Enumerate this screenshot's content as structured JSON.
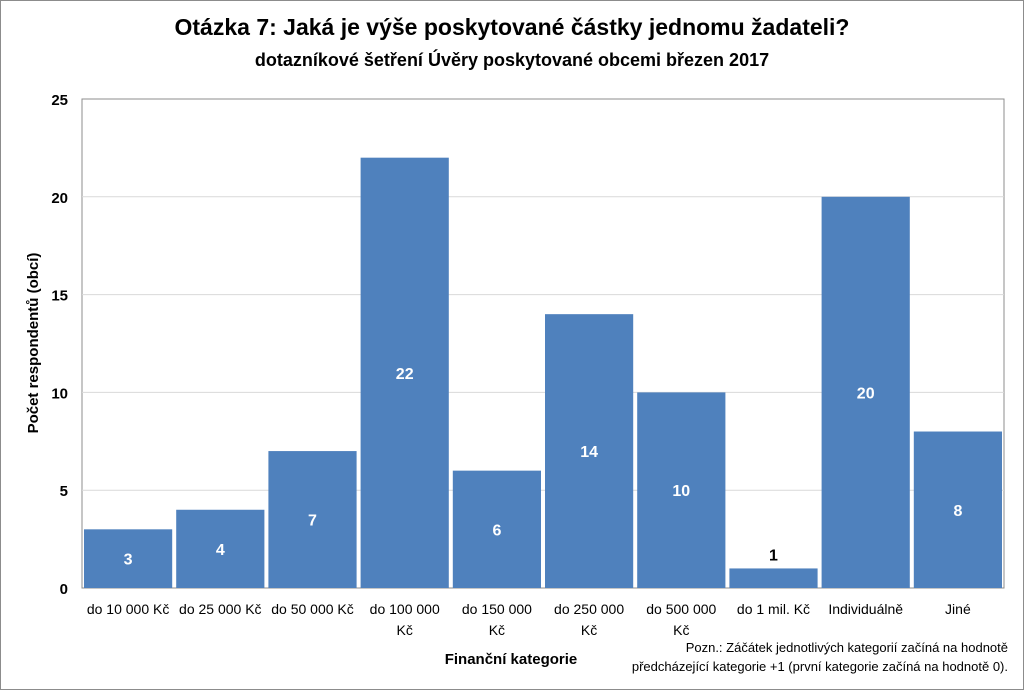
{
  "chart_data": {
    "type": "bar",
    "title": "Otázka 7: Jaká je výše poskytované částky jednomu žadateli?",
    "subtitle": "dotazníkové šetření Úvěry poskytované obcemi březen 2017",
    "xlabel": "Finanční kategorie",
    "ylabel": "Počet respondentů (obcí)",
    "ylim": [
      0,
      25
    ],
    "yticks": [
      "0",
      "5",
      "10",
      "15",
      "20",
      "25"
    ],
    "grid": true,
    "categories": [
      [
        "do 10 000 Kč"
      ],
      [
        "do 25 000 Kč"
      ],
      [
        "do 50 000 Kč"
      ],
      [
        "do 100 000",
        "Kč"
      ],
      [
        "do 150 000",
        "Kč"
      ],
      [
        "do 250 000",
        "Kč"
      ],
      [
        "do 500 000",
        "Kč"
      ],
      [
        "do 1 mil.  Kč"
      ],
      [
        "Individuálně"
      ],
      [
        "Jiné"
      ]
    ],
    "values": [
      3,
      4,
      7,
      22,
      6,
      14,
      10,
      1,
      20,
      8
    ],
    "data_labels": [
      "3",
      "4",
      "7",
      "22",
      "6",
      "14",
      "10",
      "1",
      "20",
      "8"
    ],
    "bar_color": "#4f81bd",
    "note": [
      "Pozn.: Záčátek jednotlivých kategorií začíná na hodnotě",
      "předcházející kategorie +1 (první kategorie začíná na hodnotě 0)."
    ]
  }
}
